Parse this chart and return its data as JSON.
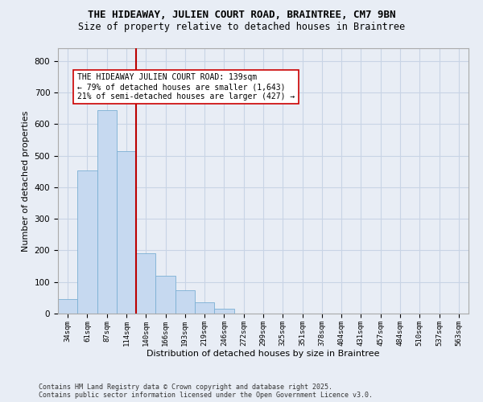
{
  "title_line1": "THE HIDEAWAY, JULIEN COURT ROAD, BRAINTREE, CM7 9BN",
  "title_line2": "Size of property relative to detached houses in Braintree",
  "xlabel": "Distribution of detached houses by size in Braintree",
  "ylabel": "Number of detached properties",
  "categories": [
    "34sqm",
    "61sqm",
    "87sqm",
    "114sqm",
    "140sqm",
    "166sqm",
    "193sqm",
    "219sqm",
    "246sqm",
    "272sqm",
    "299sqm",
    "325sqm",
    "351sqm",
    "378sqm",
    "404sqm",
    "431sqm",
    "457sqm",
    "484sqm",
    "510sqm",
    "537sqm",
    "563sqm"
  ],
  "values": [
    45,
    453,
    645,
    515,
    190,
    120,
    75,
    35,
    15,
    0,
    0,
    0,
    0,
    0,
    0,
    0,
    0,
    0,
    0,
    0,
    0
  ],
  "bar_color": "#c6d9f0",
  "bar_edge_color": "#7bafd4",
  "grid_color": "#c8d4e5",
  "bg_color": "#e8edf5",
  "vline_x": 3.5,
  "vline_color": "#bb0000",
  "annotation_text": "THE HIDEAWAY JULIEN COURT ROAD: 139sqm\n← 79% of detached houses are smaller (1,643)\n21% of semi-detached houses are larger (427) →",
  "annotation_box_facecolor": "#ffffff",
  "annotation_box_edgecolor": "#cc0000",
  "footnote": "Contains HM Land Registry data © Crown copyright and database right 2025.\nContains public sector information licensed under the Open Government Licence v3.0.",
  "ylim": [
    0,
    840
  ],
  "yticks": [
    0,
    100,
    200,
    300,
    400,
    500,
    600,
    700,
    800
  ],
  "figsize": [
    6.0,
    5.0
  ],
  "dpi": 100
}
